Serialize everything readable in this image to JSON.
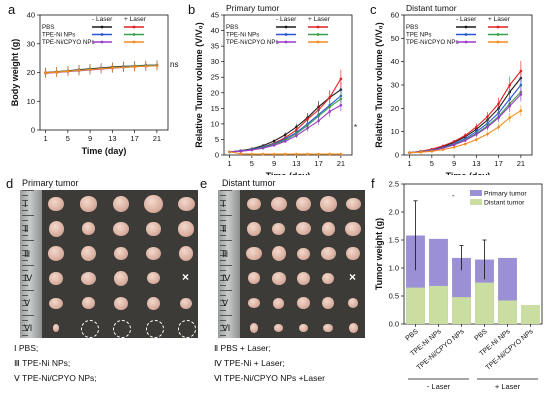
{
  "panel_letters": {
    "a": "a",
    "b": "b",
    "c": "c",
    "d": "d",
    "e": "e",
    "f": "f"
  },
  "photo_titles": {
    "d": "Primary tumor",
    "e": "Distant tumor"
  },
  "photo_legend": {
    "d": [
      "Ⅰ  PBS;",
      "Ⅲ  TPE-Ni NPs;",
      "Ⅴ  TPE-Ni/CPYO NPs;"
    ],
    "e": [
      "Ⅱ  PBS + Laser;",
      "Ⅳ  TPE-Ni + Laser;",
      "Ⅵ  TPE-Ni/CPYO NPs +Laser"
    ]
  },
  "photo_row_labels": {
    "d": [
      "Ⅰ",
      "Ⅱ",
      "Ⅲ",
      "Ⅳ",
      "Ⅴ",
      "Ⅵ"
    ],
    "e": [
      "Ⅰ",
      "Ⅱ",
      "Ⅲ",
      "Ⅳ",
      "Ⅴ",
      "Ⅵ"
    ]
  },
  "photo_marks": {
    "x": "×"
  },
  "chart_data": [
    {
      "id": "a",
      "type": "line",
      "title": "",
      "xlabel": "Time (day)",
      "ylabel": "Body weight (g)",
      "xlim": [
        0,
        23
      ],
      "ylim": [
        0,
        40
      ],
      "xticks": [
        1,
        5,
        9,
        13,
        17,
        21
      ],
      "yticks": [
        0,
        10,
        20,
        30,
        40
      ],
      "legend_header": [
        "- Laser",
        "+ Laser"
      ],
      "legend_rows": [
        "PBS",
        "TPE-Ni NPs",
        "TPE-Ni/CPYO NPs"
      ],
      "annotation": "ns",
      "x": [
        1,
        3,
        5,
        7,
        9,
        11,
        13,
        15,
        17,
        19,
        21
      ],
      "series": [
        {
          "name": "PBS (- Laser)",
          "color": "#1a1a1a",
          "values": [
            20,
            20.3,
            20.6,
            21,
            21.3,
            21.6,
            21.9,
            22.1,
            22.3,
            22.5,
            22.6
          ]
        },
        {
          "name": "PBS (+ Laser)",
          "color": "#e02020",
          "values": [
            20,
            20.2,
            20.5,
            20.8,
            21,
            21.3,
            21.6,
            21.8,
            22,
            22.2,
            22.4
          ]
        },
        {
          "name": "TPE-Ni NPs (- Laser)",
          "color": "#2a55d6",
          "values": [
            19.8,
            20.1,
            20.4,
            20.7,
            21,
            21.3,
            21.6,
            21.9,
            22.1,
            22.3,
            22.5
          ]
        },
        {
          "name": "TPE-Ni NPs (+ Laser)",
          "color": "#3aa04a",
          "values": [
            19.9,
            20.2,
            20.5,
            20.8,
            21.1,
            21.4,
            21.7,
            21.9,
            22.2,
            22.4,
            22.6
          ]
        },
        {
          "name": "TPE-Ni/CPYO NPs (- Laser)",
          "color": "#9b3bc7",
          "values": [
            19.7,
            20,
            20.3,
            20.6,
            20.9,
            21.2,
            21.5,
            21.8,
            22,
            22.2,
            22.4
          ]
        },
        {
          "name": "TPE-Ni/CPYO NPs (+ Laser)",
          "color": "#f28c1e",
          "values": [
            19.8,
            20.1,
            20.4,
            20.7,
            21,
            21.3,
            21.6,
            21.8,
            22,
            22.2,
            22.3
          ]
        }
      ]
    },
    {
      "id": "b",
      "type": "line",
      "title": "Primary tumor",
      "xlabel": "Time (day)",
      "ylabel": "Relative Tumor volume (V/V₀)",
      "xlim": [
        0,
        23
      ],
      "ylim": [
        0,
        45
      ],
      "xticks": [
        1,
        5,
        9,
        13,
        17,
        21
      ],
      "yticks": [
        0,
        5,
        10,
        15,
        20,
        25,
        30,
        35,
        40,
        45
      ],
      "legend_header": [
        "- Laser",
        "+ Laser"
      ],
      "legend_rows": [
        "PBS",
        "TPE-Ni NPs",
        "TPE-Ni/CPYO NPs"
      ],
      "annotation": "*",
      "x": [
        1,
        3,
        5,
        7,
        9,
        11,
        13,
        15,
        17,
        19,
        21
      ],
      "series": [
        {
          "name": "PBS (- Laser)",
          "color": "#1a1a1a",
          "values": [
            1,
            1.4,
            2,
            3,
            4.5,
            6.5,
            9,
            12,
            15.5,
            18.5,
            21
          ]
        },
        {
          "name": "PBS (+ Laser)",
          "color": "#e02020",
          "values": [
            1,
            1.3,
            1.8,
            2.6,
            3.8,
            5.6,
            8,
            11.5,
            14.5,
            18.5,
            24.5
          ]
        },
        {
          "name": "TPE-Ni NPs (- Laser)",
          "color": "#2a55d6",
          "values": [
            1,
            1.3,
            1.8,
            2.6,
            3.6,
            5.2,
            7.2,
            10,
            13,
            16,
            19
          ]
        },
        {
          "name": "TPE-Ni NPs (+ Laser)",
          "color": "#3aa04a",
          "values": [
            1,
            1.2,
            1.7,
            2.4,
            3.4,
            4.8,
            6.8,
            9.5,
            12.5,
            15.5,
            18
          ]
        },
        {
          "name": "TPE-Ni/CPYO NPs (- Laser)",
          "color": "#9b3bc7",
          "values": [
            1,
            1.2,
            1.6,
            2.2,
            3.1,
            4.4,
            6.2,
            8.6,
            11,
            14,
            16
          ]
        },
        {
          "name": "TPE-Ni/CPYO NPs (+ Laser)",
          "color": "#f28c1e",
          "values": [
            1,
            0.4,
            0.3,
            0.3,
            0.3,
            0.3,
            0.3,
            0.3,
            0.3,
            0.3,
            0.3
          ]
        }
      ]
    },
    {
      "id": "c",
      "type": "line",
      "title": "Distant tumor",
      "xlabel": "Time (day)",
      "ylabel": "Relative Tumor volume (V/V₀)",
      "xlim": [
        0,
        23
      ],
      "ylim": [
        0,
        60
      ],
      "xticks": [
        1,
        5,
        9,
        13,
        17,
        21
      ],
      "yticks": [
        0,
        10,
        20,
        30,
        40,
        50,
        60
      ],
      "legend_header": [
        "- Laser",
        "+ Laser"
      ],
      "legend_rows": [
        "PBS",
        "TPE NPs",
        "TPE-Ni/CPYO NPs"
      ],
      "x": [
        1,
        3,
        5,
        7,
        9,
        11,
        13,
        15,
        17,
        19,
        21
      ],
      "series": [
        {
          "name": "PBS (- Laser)",
          "color": "#1a1a1a",
          "values": [
            1,
            1.5,
            2.3,
            3.6,
            5.4,
            7.8,
            11,
            15,
            20,
            27,
            33
          ]
        },
        {
          "name": "PBS (+ Laser)",
          "color": "#e02020",
          "values": [
            1,
            1.6,
            2.5,
            3.9,
            5.8,
            8.4,
            12,
            16.5,
            22,
            30,
            36
          ]
        },
        {
          "name": "TPE NPs (- Laser)",
          "color": "#2a55d6",
          "values": [
            1,
            1.4,
            2.1,
            3.2,
            4.8,
            7,
            10,
            13.5,
            18,
            24,
            30
          ]
        },
        {
          "name": "TPE NPs (+ Laser)",
          "color": "#3aa04a",
          "values": [
            1,
            1.4,
            2,
            3,
            4.5,
            6.5,
            9.2,
            12.5,
            16.5,
            22,
            27
          ]
        },
        {
          "name": "TPE-Ni/CPYO NPs (- Laser)",
          "color": "#9b3bc7",
          "values": [
            1,
            1.3,
            1.9,
            2.9,
            4.3,
            6.2,
            8.8,
            12,
            16,
            21,
            26
          ]
        },
        {
          "name": "TPE-Ni/CPYO NPs (+ Laser)",
          "color": "#f28c1e",
          "values": [
            1,
            1.2,
            1.6,
            2.3,
            3.3,
            4.7,
            6.6,
            9,
            12,
            16,
            19
          ]
        }
      ]
    },
    {
      "id": "f",
      "type": "bar",
      "title": "",
      "xlabel": "",
      "ylabel": "Tumor weight (g)",
      "ylim": [
        0,
        2.5
      ],
      "yticks": [
        0.0,
        0.5,
        1.0,
        1.5,
        2.0,
        2.5
      ],
      "categories": [
        "PBS",
        "TPE-Ni NPs",
        "TPE-Ni/CPYO NPs",
        "PBS",
        "TPE-Ni NPs",
        "TPE-Ni/CPYO NPs"
      ],
      "groups": [
        "- Laser",
        "+ Laser"
      ],
      "series": [
        {
          "name": "Primary tumor",
          "color": "#9b8fd6",
          "values": [
            1.58,
            1.52,
            1.18,
            1.15,
            1.18,
            0.05
          ]
        },
        {
          "name": "Distant tumor",
          "color": "#c9dea0",
          "values": [
            0.65,
            0.68,
            0.48,
            0.74,
            0.42,
            0.34
          ]
        }
      ],
      "errors": [
        0.62,
        0.0,
        0.22,
        0.35,
        0.0,
        0.0
      ],
      "annotation": "-"
    }
  ]
}
